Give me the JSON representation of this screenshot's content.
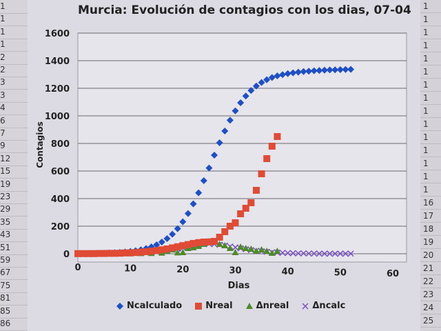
{
  "spreadsheet": {
    "left_column_values": [
      "1",
      "1",
      "1",
      "1",
      "2",
      "2",
      "3",
      "3",
      "4",
      "6",
      "7",
      "9",
      "12",
      "15",
      "19",
      "23",
      "29",
      "35",
      "43",
      "51",
      "59",
      "67",
      "75",
      "81",
      "85",
      "86"
    ],
    "right_column_values": [
      "1",
      "1",
      "1",
      "1",
      "1",
      "1",
      "1",
      "1",
      "1",
      "1",
      "1",
      "1",
      "1",
      "1",
      "1",
      "16",
      "17",
      "18",
      "19",
      "20",
      "21",
      "22",
      "23",
      "24",
      "25"
    ]
  },
  "chart_data": {
    "type": "scatter",
    "title": "Murcia: Evolución de contagios con los dias, 07-04",
    "xlabel": "Dias",
    "ylabel": "Contagios",
    "xlim": [
      0,
      60
    ],
    "ylim": [
      0,
      1600
    ],
    "x_ticks": [
      0,
      10,
      20,
      30,
      40,
      50,
      60
    ],
    "y_ticks": [
      0,
      200,
      400,
      600,
      800,
      1000,
      1200,
      1400,
      1600
    ],
    "grid": "horizontal",
    "legend_position": "bottom",
    "series": [
      {
        "name": "Ncalculado",
        "marker": "diamond",
        "color": "#1f4fc4",
        "x": [
          0,
          1,
          2,
          3,
          4,
          5,
          6,
          7,
          8,
          9,
          10,
          11,
          12,
          13,
          14,
          15,
          16,
          17,
          18,
          19,
          20,
          21,
          22,
          23,
          24,
          25,
          26,
          27,
          28,
          29,
          30,
          31,
          32,
          33,
          34,
          35,
          36,
          37,
          38,
          39,
          40,
          41,
          42,
          43,
          44,
          45,
          46,
          47,
          48,
          49,
          50,
          51,
          52
        ],
        "values": [
          2,
          2,
          3,
          3,
          4,
          5,
          6,
          8,
          10,
          13,
          17,
          22,
          29,
          38,
          50,
          65,
          85,
          110,
          142,
          182,
          232,
          292,
          362,
          442,
          530,
          622,
          715,
          805,
          890,
          968,
          1036,
          1095,
          1144,
          1184,
          1216,
          1242,
          1262,
          1278,
          1290,
          1299,
          1306,
          1312,
          1317,
          1321,
          1324,
          1327,
          1329,
          1331,
          1333,
          1334,
          1335,
          1336,
          1337
        ]
      },
      {
        "name": "Nreal",
        "marker": "square",
        "color": "#e04b35",
        "x": [
          0,
          1,
          2,
          3,
          4,
          5,
          6,
          7,
          8,
          9,
          10,
          11,
          12,
          13,
          14,
          15,
          16,
          17,
          18,
          19,
          20,
          21,
          22,
          23,
          24,
          25,
          26,
          27,
          28,
          29,
          30,
          31,
          32,
          33,
          34,
          35,
          36,
          37,
          38
        ],
        "values": [
          1,
          1,
          1,
          1,
          2,
          2,
          3,
          3,
          4,
          6,
          7,
          9,
          12,
          15,
          19,
          23,
          29,
          35,
          43,
          51,
          59,
          67,
          75,
          81,
          85,
          86,
          90,
          120,
          160,
          200,
          225,
          290,
          330,
          370,
          460,
          580,
          690,
          780,
          850
        ]
      },
      {
        "name": "Δnreal",
        "marker": "triangle",
        "color": "#4f8a2a",
        "x": [
          0,
          2,
          4,
          6,
          8,
          10,
          12,
          14,
          16,
          17,
          18,
          19,
          20,
          21,
          22,
          23,
          24,
          25,
          26,
          27,
          28,
          29,
          30,
          31,
          32,
          33,
          34,
          35,
          36,
          37,
          38
        ],
        "values": [
          0,
          0,
          0,
          1,
          1,
          1,
          3,
          4,
          6,
          20,
          30,
          8,
          10,
          40,
          45,
          55,
          70,
          90,
          85,
          70,
          60,
          40,
          10,
          50,
          40,
          35,
          20,
          30,
          20,
          5,
          20
        ]
      },
      {
        "name": "Δncalc",
        "marker": "x",
        "color": "#7b52c4",
        "x": [
          0,
          1,
          2,
          3,
          4,
          5,
          6,
          7,
          8,
          9,
          10,
          11,
          12,
          13,
          14,
          15,
          16,
          17,
          18,
          19,
          20,
          21,
          22,
          23,
          24,
          25,
          26,
          27,
          28,
          29,
          30,
          31,
          32,
          33,
          34,
          35,
          36,
          37,
          38,
          39,
          40,
          41,
          42,
          43,
          44,
          45,
          46,
          47,
          48,
          49,
          50,
          51,
          52
        ],
        "values": [
          0,
          0,
          1,
          1,
          1,
          1,
          1,
          2,
          2,
          3,
          4,
          5,
          6,
          8,
          11,
          14,
          18,
          23,
          28,
          36,
          42,
          50,
          58,
          64,
          69,
          72,
          70,
          66,
          60,
          53,
          46,
          39,
          33,
          27,
          22,
          18,
          14,
          11,
          9,
          7,
          5,
          4,
          3,
          3,
          2,
          2,
          1,
          1,
          1,
          1,
          1,
          1,
          1
        ]
      }
    ]
  }
}
